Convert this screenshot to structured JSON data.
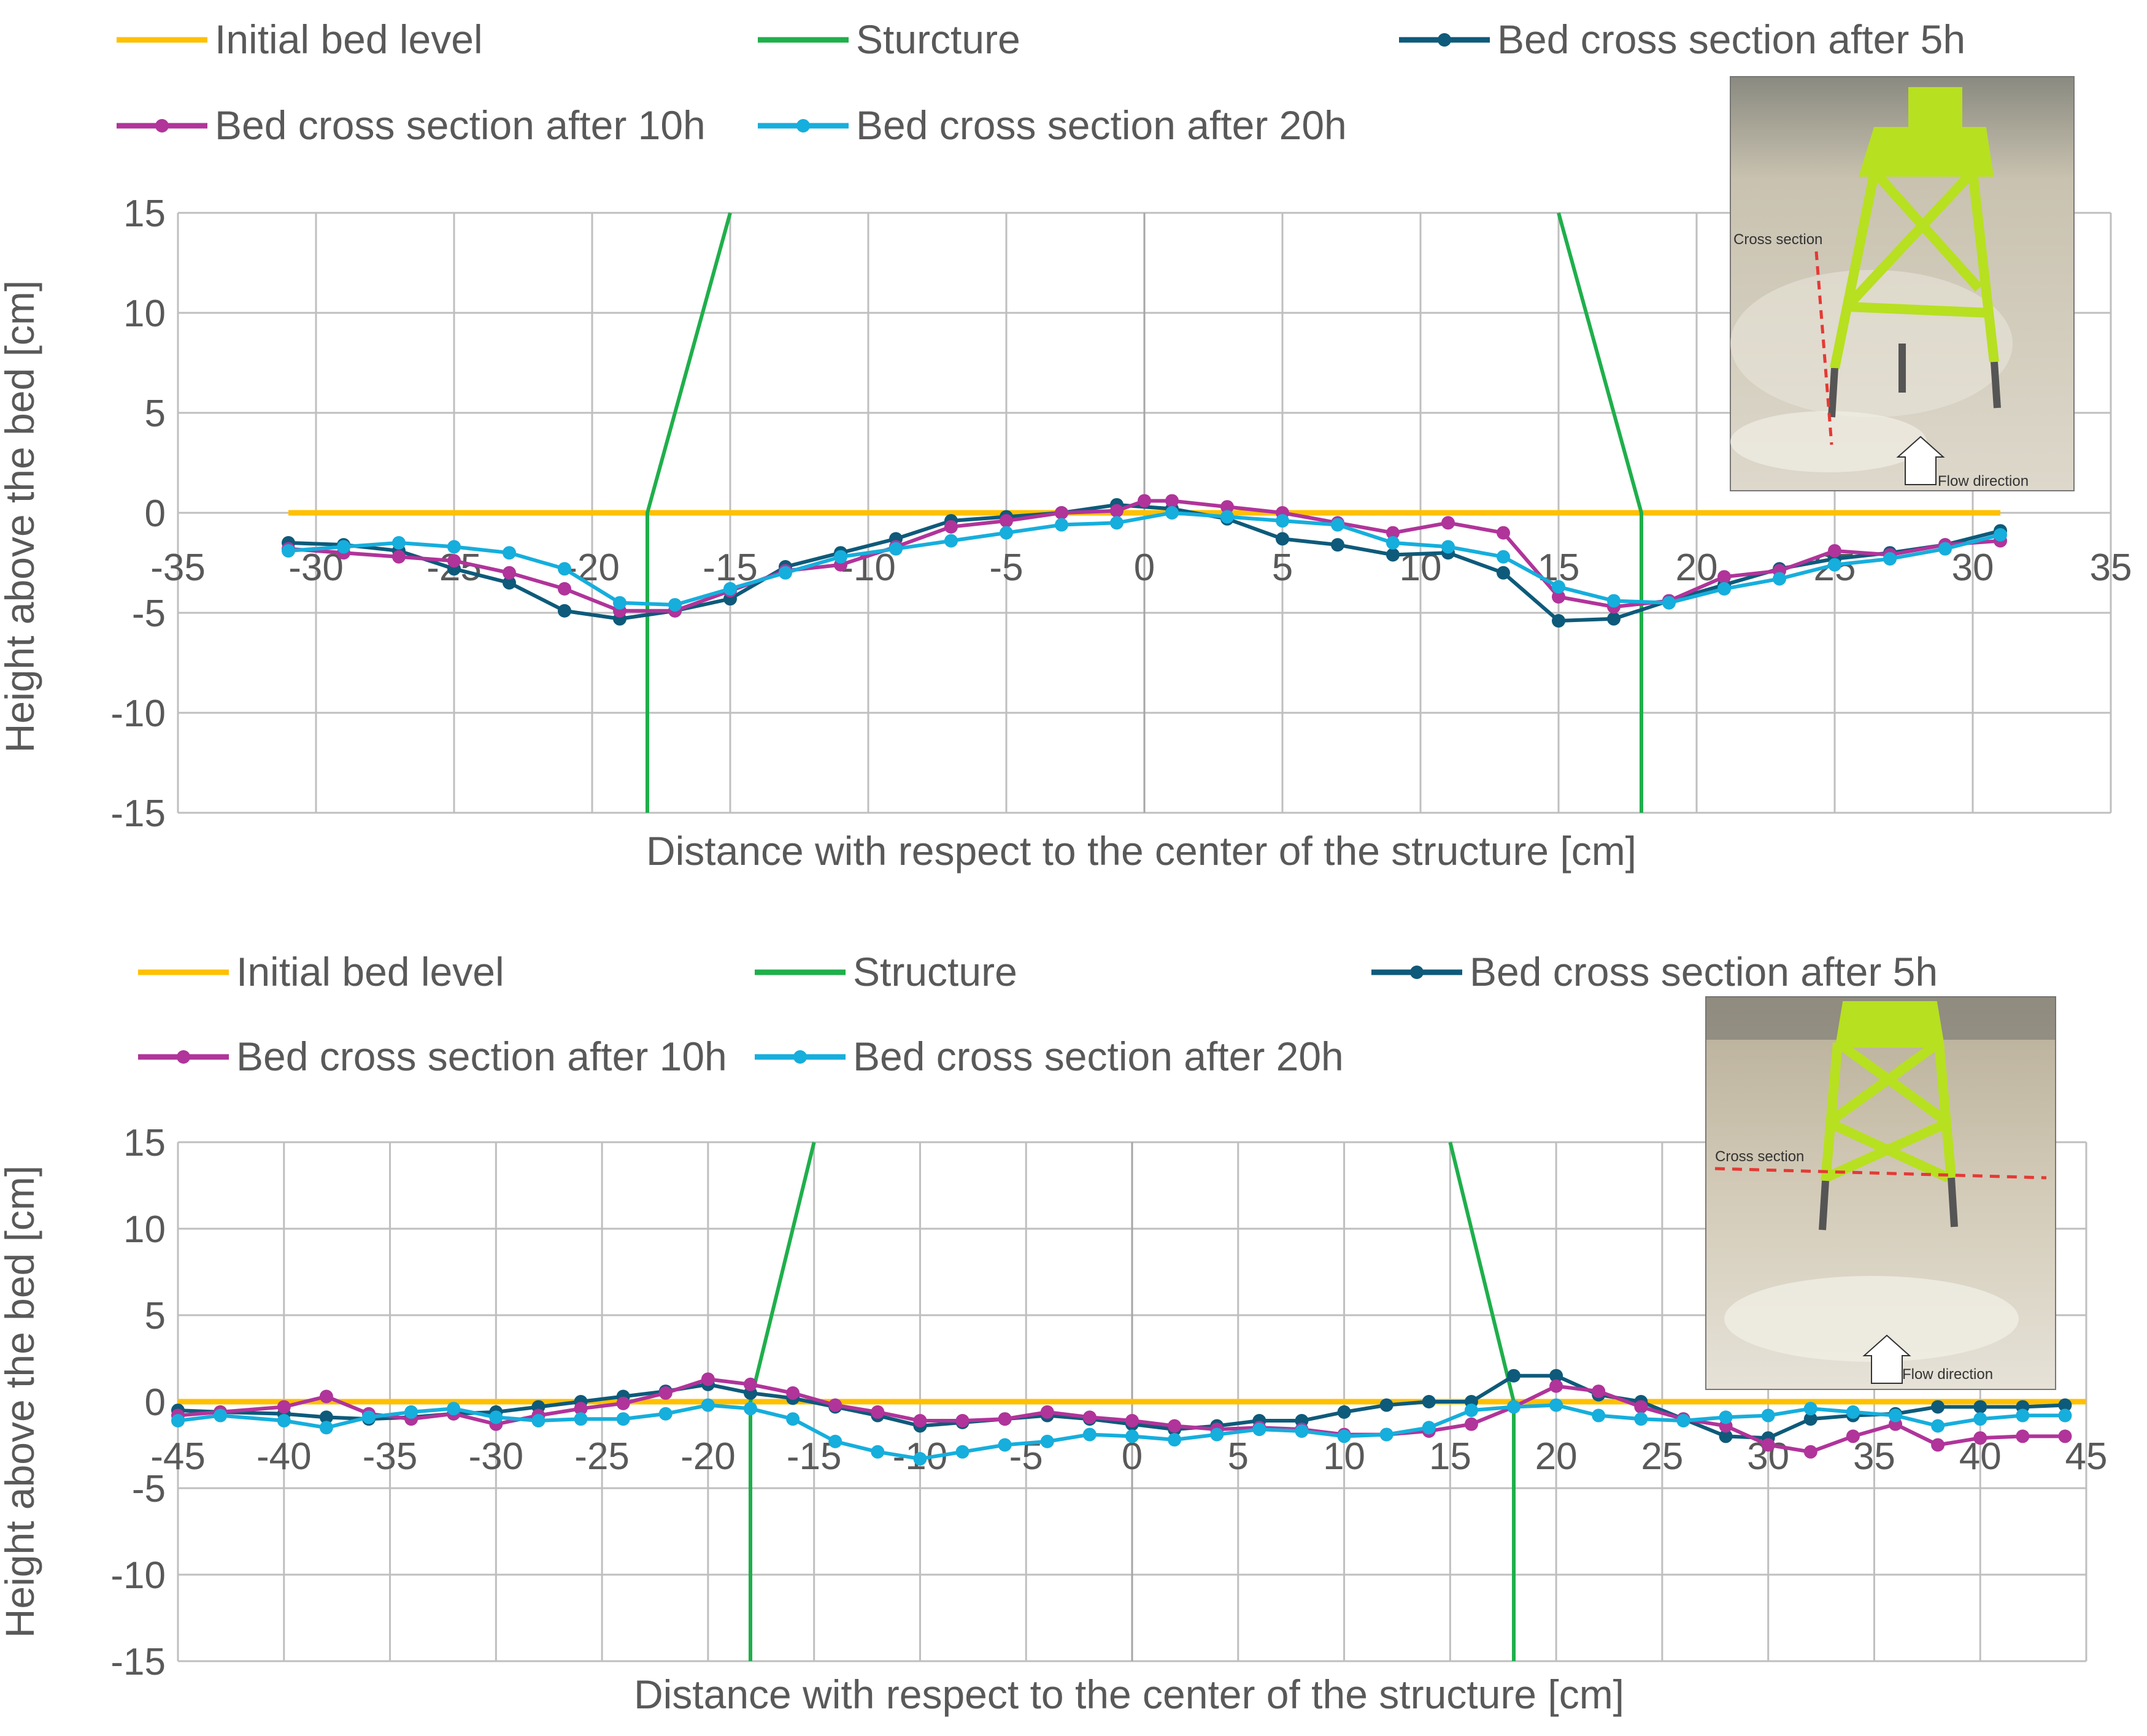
{
  "colors": {
    "initial": "#FFC000",
    "structure": "#1FAF4B",
    "h5": "#0E5A7A",
    "h10": "#B0349A",
    "h20": "#16AEDC",
    "grid": "#BFBFBF",
    "zeroline": "#A6A6A6",
    "text": "#595959"
  },
  "chart_data": [
    {
      "type": "line",
      "xlabel": "Distance with respect to the center of the structure [cm]",
      "ylabel": "Height above the bed [cm]",
      "xlim": [
        -35,
        35
      ],
      "ylim": [
        -15,
        15
      ],
      "xticks": [
        -35,
        -30,
        -25,
        -20,
        -15,
        -10,
        -5,
        0,
        5,
        10,
        15,
        20,
        25,
        30,
        35
      ],
      "yticks": [
        -15,
        -10,
        -5,
        0,
        5,
        10,
        15
      ],
      "grid": true,
      "legend_position": "top",
      "series": [
        {
          "key": "initial",
          "name": "Initial bed level",
          "markers": false,
          "x": [
            -31,
            31
          ],
          "y": [
            0,
            0
          ]
        },
        {
          "key": "structure",
          "name": "Sturcture",
          "markers": false,
          "x": [
            -18,
            -18,
            -15
          ],
          "y": [
            -15,
            0,
            15
          ],
          "x2": [
            18,
            18,
            15
          ],
          "y2": [
            -15,
            0,
            15
          ]
        },
        {
          "key": "h5",
          "name": "Bed cross section after 5h",
          "markers": true,
          "x": [
            -31,
            -29,
            -27,
            -25,
            -23,
            -21,
            -19,
            -17,
            -15,
            -13,
            -11,
            -9,
            -7,
            -5,
            -3,
            -1,
            1,
            3,
            5,
            7,
            9,
            11,
            13,
            15,
            17,
            19,
            21,
            23,
            25,
            27,
            29,
            31
          ],
          "y": [
            -1.5,
            -1.6,
            -1.9,
            -2.8,
            -3.5,
            -4.9,
            -5.3,
            -4.9,
            -4.3,
            -2.7,
            -2.0,
            -1.3,
            -0.4,
            -0.2,
            0.0,
            0.4,
            0.2,
            -0.3,
            -1.3,
            -1.6,
            -2.1,
            -2.0,
            -3.0,
            -5.4,
            -5.3,
            -4.4,
            -3.6,
            -2.8,
            -2.3,
            -2.0,
            -1.6,
            -0.9
          ]
        },
        {
          "key": "h10",
          "name": "Bed cross section after 10h",
          "markers": true,
          "x": [
            -31,
            -29,
            -27,
            -25,
            -23,
            -21,
            -19,
            -17,
            -15,
            -13,
            -11,
            -9,
            -7,
            -5,
            -3,
            -1,
            0,
            1,
            3,
            5,
            7,
            9,
            11,
            13,
            15,
            17,
            19,
            21,
            23,
            25,
            27,
            29,
            31
          ],
          "y": [
            -1.8,
            -2.0,
            -2.2,
            -2.4,
            -3.0,
            -3.8,
            -4.9,
            -4.9,
            -3.9,
            -2.9,
            -2.6,
            -1.7,
            -0.7,
            -0.4,
            0.0,
            0.1,
            0.6,
            0.6,
            0.3,
            0.0,
            -0.5,
            -1.0,
            -0.5,
            -1.0,
            -4.2,
            -4.7,
            -4.4,
            -3.2,
            -2.9,
            -1.9,
            -2.1,
            -1.6,
            -1.4
          ]
        },
        {
          "key": "h20",
          "name": "Bed cross section after 20h",
          "markers": true,
          "x": [
            -31,
            -29,
            -27,
            -25,
            -23,
            -21,
            -19,
            -17,
            -15,
            -13,
            -11,
            -9,
            -7,
            -5,
            -3,
            -1,
            1,
            3,
            5,
            7,
            9,
            11,
            13,
            15,
            17,
            19,
            21,
            23,
            25,
            27,
            29,
            31
          ],
          "y": [
            -1.9,
            -1.7,
            -1.5,
            -1.7,
            -2.0,
            -2.8,
            -4.5,
            -4.6,
            -3.8,
            -3.0,
            -2.2,
            -1.8,
            -1.4,
            -1.0,
            -0.6,
            -0.5,
            0.0,
            -0.2,
            -0.4,
            -0.6,
            -1.5,
            -1.7,
            -2.2,
            -3.7,
            -4.4,
            -4.5,
            -3.8,
            -3.3,
            -2.6,
            -2.3,
            -1.8,
            -1.1
          ]
        }
      ],
      "photo": {
        "labels": [
          "Cross section",
          "Flow direction"
        ]
      }
    },
    {
      "type": "line",
      "xlabel": "Distance with respect to the center of the structure [cm]",
      "ylabel": "Height above the bed [cm]",
      "xlim": [
        -45,
        45
      ],
      "ylim": [
        -15,
        15
      ],
      "xticks": [
        -45,
        -40,
        -35,
        -30,
        -25,
        -20,
        -15,
        -10,
        -5,
        0,
        5,
        10,
        15,
        20,
        25,
        30,
        35,
        40,
        45
      ],
      "yticks": [
        -15,
        -10,
        -5,
        0,
        5,
        10,
        15
      ],
      "grid": true,
      "legend_position": "top",
      "series": [
        {
          "key": "initial",
          "name": "Initial bed level",
          "markers": false,
          "x": [
            -45,
            45
          ],
          "y": [
            0,
            0
          ]
        },
        {
          "key": "structure",
          "name": "Structure",
          "markers": false,
          "x": [
            -18,
            -18,
            -15
          ],
          "y": [
            -15,
            0,
            15
          ],
          "x2": [
            18,
            18,
            15
          ],
          "y2": [
            -15,
            0,
            15
          ]
        },
        {
          "key": "h5",
          "name": "Bed cross section after 5h",
          "markers": true,
          "x": [
            -45,
            -43,
            -40,
            -38,
            -36,
            -34,
            -32,
            -30,
            -28,
            -26,
            -24,
            -22,
            -20,
            -18,
            -16,
            -14,
            -12,
            -10,
            -8,
            -6,
            -4,
            -2,
            0,
            2,
            4,
            6,
            8,
            10,
            12,
            14,
            16,
            18,
            20,
            22,
            24,
            26,
            28,
            30,
            32,
            34,
            36,
            38,
            40,
            42,
            44
          ],
          "y": [
            -0.5,
            -0.6,
            -0.7,
            -0.9,
            -1.0,
            -0.9,
            -0.7,
            -0.6,
            -0.3,
            0.0,
            0.3,
            0.6,
            1.0,
            0.5,
            0.2,
            -0.3,
            -0.8,
            -1.4,
            -1.2,
            -1.0,
            -0.8,
            -1.0,
            -1.3,
            -1.6,
            -1.4,
            -1.1,
            -1.1,
            -0.6,
            -0.2,
            0.0,
            0.0,
            1.5,
            1.5,
            0.4,
            0.0,
            -1.0,
            -2.0,
            -2.1,
            -1.0,
            -0.8,
            -0.7,
            -0.3,
            -0.3,
            -0.3,
            -0.2
          ]
        },
        {
          "key": "h10",
          "name": "Bed cross section after 10h",
          "markers": true,
          "x": [
            -45,
            -43,
            -40,
            -38,
            -36,
            -34,
            -32,
            -30,
            -28,
            -26,
            -24,
            -22,
            -20,
            -18,
            -16,
            -14,
            -12,
            -10,
            -8,
            -6,
            -4,
            -2,
            0,
            2,
            4,
            6,
            8,
            10,
            12,
            14,
            16,
            18,
            20,
            22,
            24,
            26,
            28,
            30,
            32,
            34,
            36,
            38,
            40,
            42,
            44
          ],
          "y": [
            -0.8,
            -0.6,
            -0.3,
            0.3,
            -0.7,
            -1.0,
            -0.7,
            -1.3,
            -0.8,
            -0.4,
            -0.1,
            0.5,
            1.3,
            1.0,
            0.5,
            -0.2,
            -0.6,
            -1.1,
            -1.1,
            -1.0,
            -0.6,
            -0.9,
            -1.1,
            -1.4,
            -1.6,
            -1.5,
            -1.6,
            -1.9,
            -1.9,
            -1.7,
            -1.3,
            -0.3,
            0.9,
            0.6,
            -0.3,
            -1.0,
            -1.4,
            -2.5,
            -2.9,
            -2.0,
            -1.3,
            -2.5,
            -2.1,
            -2.0,
            -2.0
          ]
        },
        {
          "key": "h20",
          "name": "Bed cross section after 20h",
          "markers": true,
          "x": [
            -45,
            -43,
            -40,
            -38,
            -36,
            -34,
            -32,
            -30,
            -28,
            -26,
            -24,
            -22,
            -20,
            -18,
            -16,
            -14,
            -12,
            -10,
            -8,
            -6,
            -4,
            -2,
            0,
            2,
            4,
            6,
            8,
            10,
            12,
            14,
            16,
            18,
            20,
            22,
            24,
            26,
            28,
            30,
            32,
            34,
            36,
            38,
            40,
            42,
            44
          ],
          "y": [
            -1.1,
            -0.8,
            -1.1,
            -1.5,
            -0.9,
            -0.6,
            -0.4,
            -0.9,
            -1.1,
            -1.0,
            -1.0,
            -0.7,
            -0.2,
            -0.4,
            -1.0,
            -2.3,
            -2.9,
            -3.3,
            -2.9,
            -2.5,
            -2.3,
            -1.9,
            -2.0,
            -2.2,
            -1.9,
            -1.6,
            -1.7,
            -2.0,
            -1.9,
            -1.5,
            -0.5,
            -0.3,
            -0.2,
            -0.8,
            -1.0,
            -1.1,
            -0.9,
            -0.8,
            -0.4,
            -0.6,
            -0.8,
            -1.4,
            -1.0,
            -0.8,
            -0.8
          ]
        }
      ],
      "photo": {
        "labels": [
          "Cross section",
          "Flow direction"
        ]
      }
    }
  ]
}
